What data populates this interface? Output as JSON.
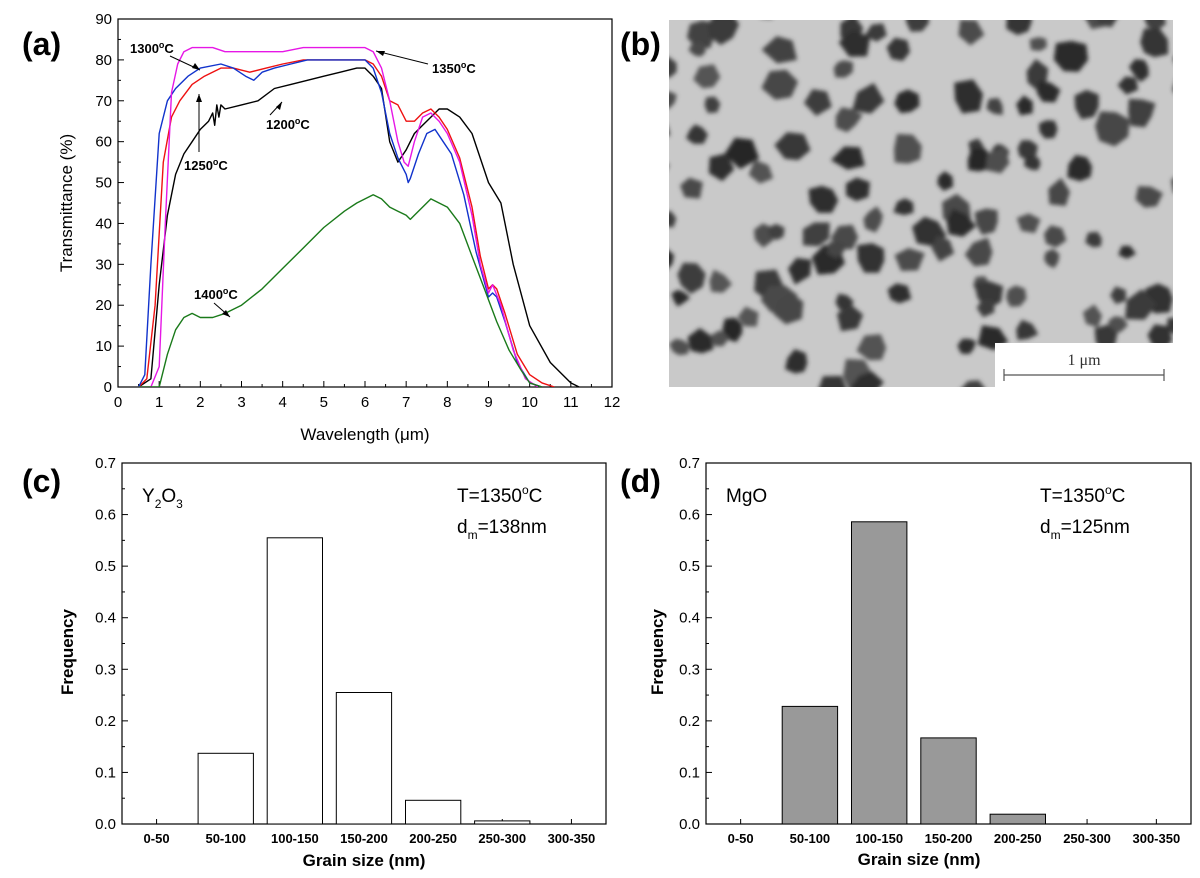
{
  "panels": {
    "a": "(a)",
    "b": "(b)",
    "c": "(c)",
    "d": "(d)"
  },
  "chart_data": [
    {
      "id": "a",
      "type": "line",
      "xlabel": "Wavelength (μm)",
      "ylabel": "Transmittance (%)",
      "xlim": [
        0,
        12
      ],
      "ylim": [
        0,
        90
      ],
      "xticks": [
        0,
        1,
        2,
        3,
        4,
        5,
        6,
        7,
        8,
        9,
        10,
        11,
        12
      ],
      "yticks": [
        0,
        10,
        20,
        30,
        40,
        50,
        60,
        70,
        80,
        90
      ],
      "series": [
        {
          "name": "1200°C",
          "color": "#000000",
          "x": [
            0.5,
            0.8,
            1.0,
            1.2,
            1.4,
            1.6,
            1.8,
            2.0,
            2.2,
            2.3,
            2.35,
            2.4,
            2.45,
            2.5,
            2.6,
            3.0,
            3.4,
            3.8,
            4.2,
            4.6,
            5.0,
            5.4,
            5.8,
            6.0,
            6.1,
            6.2,
            6.4,
            6.6,
            6.8,
            7.0,
            7.2,
            7.4,
            7.6,
            7.8,
            8.0,
            8.3,
            8.6,
            9.0,
            9.3,
            9.6,
            10.0,
            10.5,
            10.8,
            11.0,
            11.2
          ],
          "values": [
            0,
            2,
            25,
            42,
            52,
            57,
            60,
            63,
            65,
            67,
            64,
            69,
            66,
            69,
            68,
            69,
            70,
            73,
            74,
            75,
            76,
            77,
            78,
            78,
            77,
            76,
            73,
            60,
            55,
            58,
            62,
            64,
            66,
            68,
            68,
            66,
            62,
            50,
            45,
            30,
            15,
            6,
            3,
            1,
            0
          ]
        },
        {
          "name": "1250°C",
          "color": "#ee1111",
          "x": [
            0.5,
            0.7,
            0.9,
            1.1,
            1.3,
            1.5,
            1.8,
            2.1,
            2.5,
            2.8,
            3.2,
            3.6,
            4.0,
            4.5,
            5.0,
            5.5,
            6.0,
            6.2,
            6.4,
            6.6,
            6.8,
            7.0,
            7.2,
            7.4,
            7.6,
            7.8,
            8.0,
            8.3,
            8.6,
            8.8,
            9.0,
            9.1,
            9.2,
            9.4,
            9.7,
            10.0,
            10.3,
            10.6
          ],
          "values": [
            0,
            2,
            20,
            55,
            66,
            70,
            74,
            76,
            78,
            78,
            77,
            78,
            79,
            80,
            80,
            80,
            80,
            79,
            76,
            70,
            69,
            65,
            65,
            67,
            68,
            66,
            63,
            56,
            44,
            32,
            24,
            25,
            24,
            18,
            8,
            3,
            1,
            0
          ]
        },
        {
          "name": "1300°C",
          "color": "#1133cc",
          "x": [
            0.5,
            0.65,
            0.8,
            1.0,
            1.2,
            1.4,
            1.7,
            2.0,
            2.5,
            2.8,
            3.1,
            3.3,
            3.4,
            3.5,
            3.8,
            4.2,
            4.6,
            5.0,
            5.4,
            5.8,
            6.0,
            6.2,
            6.4,
            6.6,
            6.8,
            7.0,
            7.05,
            7.1,
            7.3,
            7.5,
            7.7,
            7.9,
            8.1,
            8.4,
            8.7,
            9.0,
            9.1,
            9.2,
            9.4,
            9.7,
            10.0,
            10.3
          ],
          "values": [
            0,
            3,
            30,
            62,
            70,
            73,
            76,
            78,
            79,
            78,
            76,
            75,
            76,
            77,
            78,
            79,
            80,
            80,
            80,
            80,
            80,
            78,
            72,
            62,
            56,
            52,
            50,
            51,
            57,
            62,
            63,
            60,
            57,
            47,
            33,
            22,
            23,
            22,
            16,
            6,
            1,
            0
          ]
        },
        {
          "name": "1350°C",
          "color": "#e617e6",
          "x": [
            0.5,
            0.8,
            1.0,
            1.15,
            1.3,
            1.45,
            1.6,
            1.8,
            2.0,
            2.3,
            2.6,
            3.0,
            3.5,
            4.0,
            4.5,
            5.0,
            5.5,
            6.0,
            6.2,
            6.4,
            6.6,
            6.8,
            6.95,
            7.05,
            7.2,
            7.4,
            7.6,
            7.8,
            8.0,
            8.3,
            8.6,
            8.8,
            9.0,
            9.1,
            9.3,
            9.6,
            9.9,
            10.2
          ],
          "values": [
            0,
            0,
            5,
            40,
            72,
            79,
            82,
            83,
            83,
            83,
            82,
            82,
            82,
            82,
            83,
            83,
            83,
            83,
            82,
            78,
            70,
            60,
            55,
            54,
            60,
            66,
            67,
            65,
            62,
            55,
            42,
            30,
            23,
            25,
            20,
            9,
            2,
            0
          ]
        },
        {
          "name": "1400°C",
          "color": "#1a7a1a",
          "x": [
            0.5,
            1.0,
            1.2,
            1.4,
            1.6,
            1.8,
            2.0,
            2.3,
            2.6,
            3.0,
            3.5,
            4.0,
            4.5,
            5.0,
            5.5,
            5.8,
            6.0,
            6.2,
            6.4,
            6.6,
            6.8,
            7.0,
            7.1,
            7.2,
            7.4,
            7.6,
            7.8,
            8.0,
            8.3,
            8.6,
            8.9,
            9.2,
            9.5,
            9.8,
            10.0,
            10.3
          ],
          "values": [
            0,
            0,
            8,
            14,
            17,
            18,
            17,
            17,
            18,
            20,
            24,
            29,
            34,
            39,
            43,
            45,
            46,
            47,
            46,
            44,
            43,
            42,
            41,
            42,
            44,
            46,
            45,
            44,
            40,
            32,
            24,
            16,
            9,
            4,
            1,
            0
          ]
        }
      ],
      "annotations": [
        "1300°C",
        "1350°C",
        "1200°C",
        "1250°C",
        "1400°C"
      ]
    },
    {
      "id": "c",
      "type": "bar",
      "xlabel": "Grain size (nm)",
      "ylabel": "Frequency",
      "ylim": [
        0,
        0.7
      ],
      "yticks": [
        "0.0",
        "0.1",
        "0.2",
        "0.3",
        "0.4",
        "0.5",
        "0.6",
        "0.7"
      ],
      "categories": [
        "0-50",
        "50-100",
        "100-150",
        "150-200",
        "200-250",
        "250-300",
        "300-350"
      ],
      "values": [
        0,
        0.137,
        0.555,
        0.255,
        0.046,
        0.006,
        0
      ],
      "bar_color": "#ffffff"
    },
    {
      "id": "d",
      "type": "bar",
      "xlabel": "Grain size (nm)",
      "ylabel": "Frequency",
      "ylim": [
        0,
        0.7
      ],
      "yticks": [
        "0.0",
        "0.1",
        "0.2",
        "0.3",
        "0.4",
        "0.5",
        "0.6",
        "0.7"
      ],
      "categories": [
        "0-50",
        "50-100",
        "100-150",
        "150-200",
        "200-250",
        "250-300",
        "300-350"
      ],
      "values": [
        0,
        0.228,
        0.586,
        0.167,
        0.019,
        0,
        0
      ],
      "bar_color": "#999999"
    }
  ],
  "hist_c": {
    "material_main": "Y",
    "material_sub1": "2",
    "material_mid": "O",
    "material_sub2": "3",
    "temp_pre": "T=1350",
    "temp_sup": "o",
    "temp_post": "C",
    "dm_pre": "d",
    "dm_sub": "m",
    "dm_post": "=138nm"
  },
  "hist_d": {
    "material": "MgO",
    "temp_pre": "T=1350",
    "temp_sup": "o",
    "temp_post": "C",
    "dm_pre": "d",
    "dm_sub": "m",
    "dm_post": "=125nm"
  },
  "micrograph": {
    "scale_label": "1 μm"
  }
}
